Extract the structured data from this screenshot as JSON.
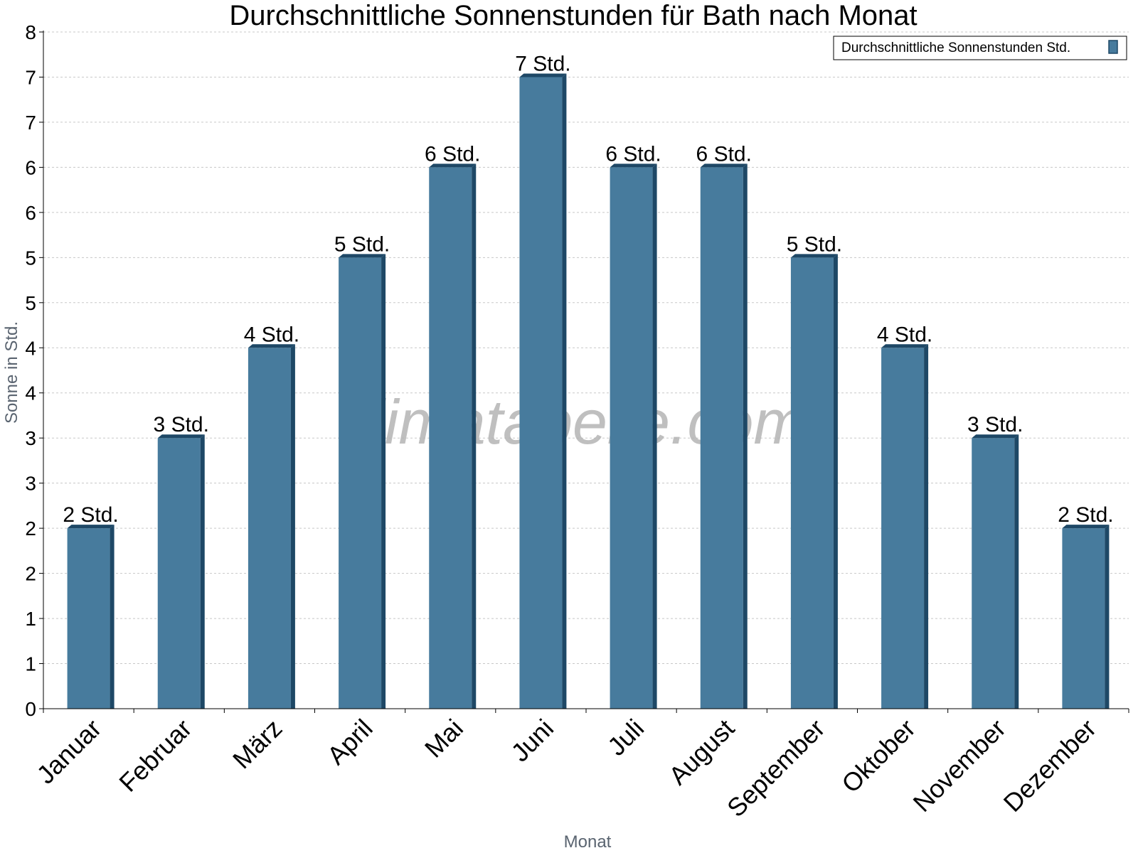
{
  "chart_data": {
    "type": "bar",
    "title": "Durchschnittliche Sonnenstunden für Bath nach Monat",
    "xlabel": "Monat",
    "ylabel": "Sonne in Std.",
    "categories": [
      "Januar",
      "Februar",
      "März",
      "April",
      "Mai",
      "Juni",
      "Juli",
      "August",
      "September",
      "Oktober",
      "November",
      "Dezember"
    ],
    "series": [
      {
        "name": "Durchschnittliche Sonnenstunden Std.",
        "values": [
          2,
          3,
          4,
          5,
          6,
          7,
          6,
          6,
          5,
          4,
          3,
          2
        ],
        "data_labels": [
          "2 Std.",
          "3 Std.",
          "4 Std.",
          "5 Std.",
          "6 Std.",
          "7 Std.",
          "6 Std.",
          "6 Std.",
          "5 Std.",
          "4 Std.",
          "3 Std.",
          "2 Std."
        ]
      }
    ],
    "ylim": [
      0,
      7.5
    ],
    "ytick_values": [
      0,
      0.5,
      1,
      1.5,
      2,
      2.5,
      3,
      3.5,
      4,
      4.5,
      5,
      5.5,
      6,
      6.5,
      7,
      7.5
    ],
    "ytick_labels": [
      "0",
      "1",
      "1",
      "2",
      "2",
      "3",
      "3",
      "4",
      "4",
      "5",
      "5",
      "6",
      "6",
      "7",
      "7",
      "8"
    ],
    "grid": true,
    "legend_position": "top-right",
    "colors": {
      "bar": "#477b9d",
      "bar_side": "#1e4866",
      "bar_top": "#1e4866",
      "grid": "#c8c8c8"
    },
    "watermark": "klimatabelle.com"
  }
}
